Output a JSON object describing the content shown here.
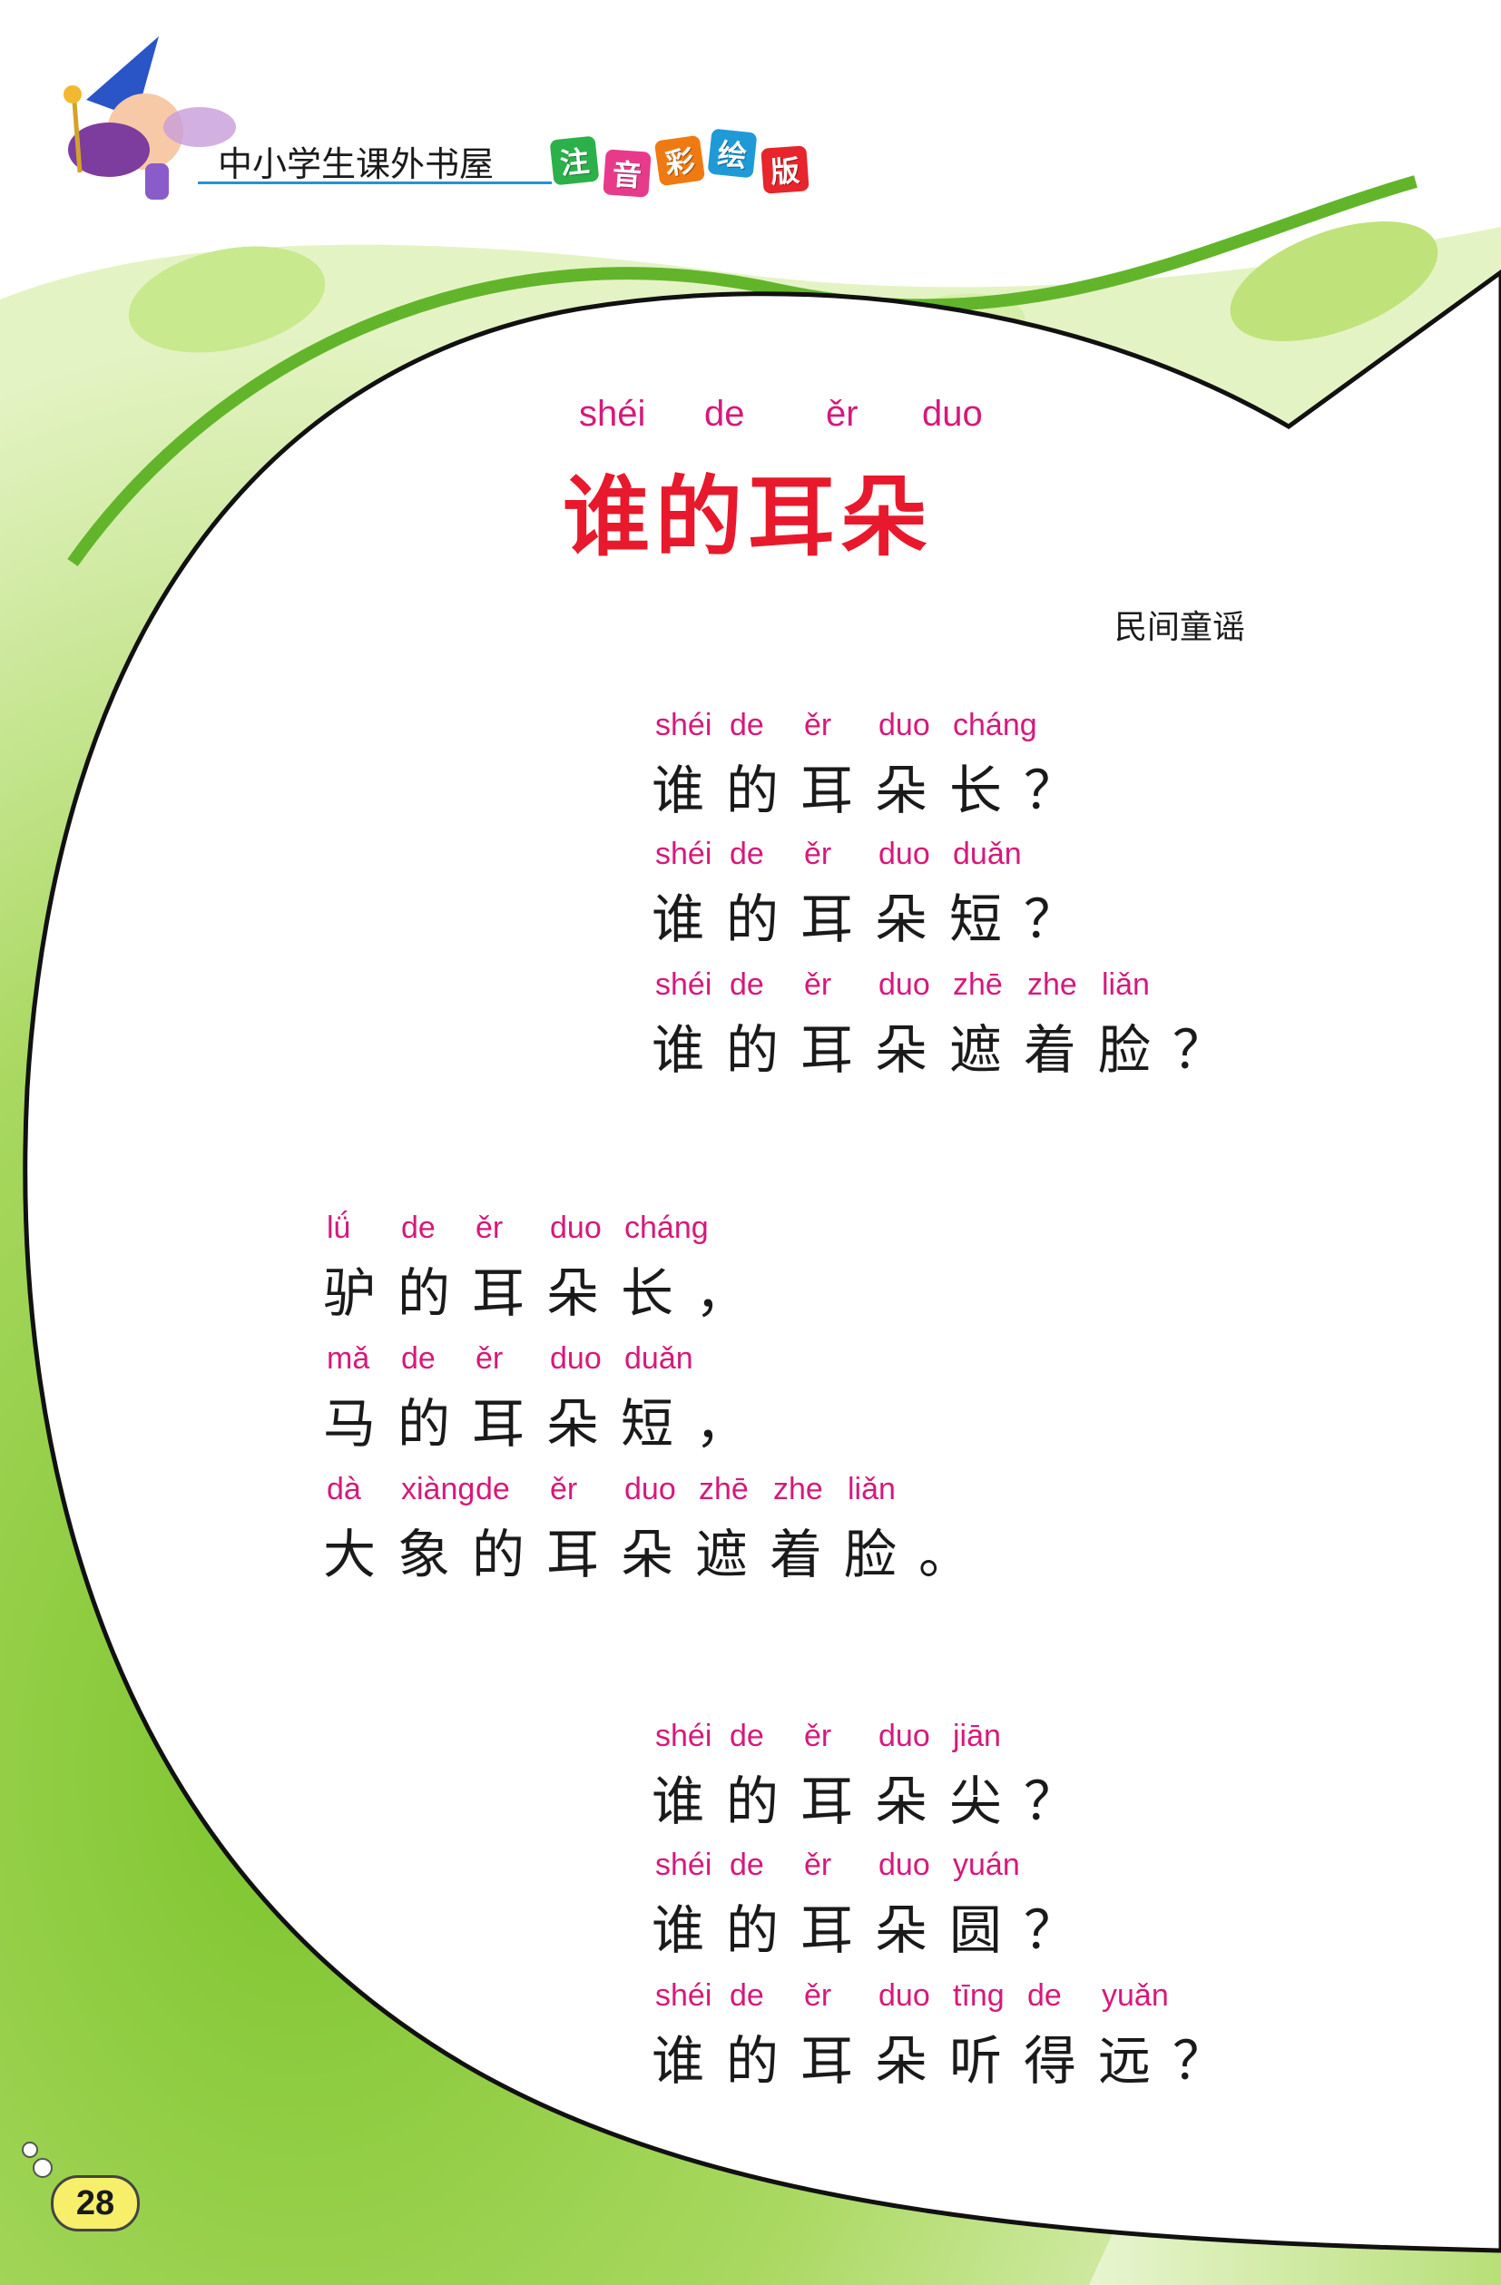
{
  "header": {
    "series_title": "中小学生课外书屋",
    "badges": [
      {
        "char": "注",
        "color": "#2bb04a"
      },
      {
        "char": "音",
        "color": "#e83a8a"
      },
      {
        "char": "彩",
        "color": "#f07a12"
      },
      {
        "char": "绘",
        "color": "#1f9ad6"
      },
      {
        "char": "版",
        "color": "#e8242c"
      }
    ]
  },
  "title": {
    "pinyin": [
      "shéi",
      "de",
      "ěr",
      "duo"
    ],
    "text": "谁的耳朵"
  },
  "author": "民间童谣",
  "stanzas": [
    {
      "lines": [
        {
          "pinyin": [
            "shéi",
            "de",
            "ěr",
            "duo",
            "cháng"
          ],
          "chars": [
            "谁",
            "的",
            "耳",
            "朵",
            "长",
            "？"
          ]
        },
        {
          "pinyin": [
            "shéi",
            "de",
            "ěr",
            "duo",
            "duǎn"
          ],
          "chars": [
            "谁",
            "的",
            "耳",
            "朵",
            "短",
            "？"
          ]
        },
        {
          "pinyin": [
            "shéi",
            "de",
            "ěr",
            "duo",
            "zhē",
            "zhe",
            "liǎn"
          ],
          "chars": [
            "谁",
            "的",
            "耳",
            "朵",
            "遮",
            "着",
            "脸",
            "？"
          ]
        }
      ]
    },
    {
      "lines": [
        {
          "pinyin": [
            "lǘ",
            "de",
            "ěr",
            "duo",
            "cháng"
          ],
          "chars": [
            "驴",
            "的",
            "耳",
            "朵",
            "长",
            "，"
          ]
        },
        {
          "pinyin": [
            "mǎ",
            "de",
            "ěr",
            "duo",
            "duǎn"
          ],
          "chars": [
            "马",
            "的",
            "耳",
            "朵",
            "短",
            "，"
          ]
        },
        {
          "pinyin": [
            "dà",
            "xiàng",
            "de",
            "ěr",
            "duo",
            "zhē",
            "zhe",
            "liǎn"
          ],
          "chars": [
            "大",
            "象",
            "的",
            "耳",
            "朵",
            "遮",
            "着",
            "脸",
            "。"
          ]
        }
      ]
    },
    {
      "lines": [
        {
          "pinyin": [
            "shéi",
            "de",
            "ěr",
            "duo",
            "jiān"
          ],
          "chars": [
            "谁",
            "的",
            "耳",
            "朵",
            "尖",
            "？"
          ]
        },
        {
          "pinyin": [
            "shéi",
            "de",
            "ěr",
            "duo",
            "yuán"
          ],
          "chars": [
            "谁",
            "的",
            "耳",
            "朵",
            "圆",
            "？"
          ]
        },
        {
          "pinyin": [
            "shéi",
            "de",
            "ěr",
            "duo",
            "tīng",
            "de",
            "yuǎn"
          ],
          "chars": [
            "谁",
            "的",
            "耳",
            "朵",
            "听",
            "得",
            "远",
            "？"
          ]
        }
      ]
    }
  ],
  "page_number": "28",
  "colors": {
    "title": "#e8192c",
    "pinyin": "#d6197a",
    "green_dark": "#5fae22",
    "green_light": "#c6e58a"
  }
}
